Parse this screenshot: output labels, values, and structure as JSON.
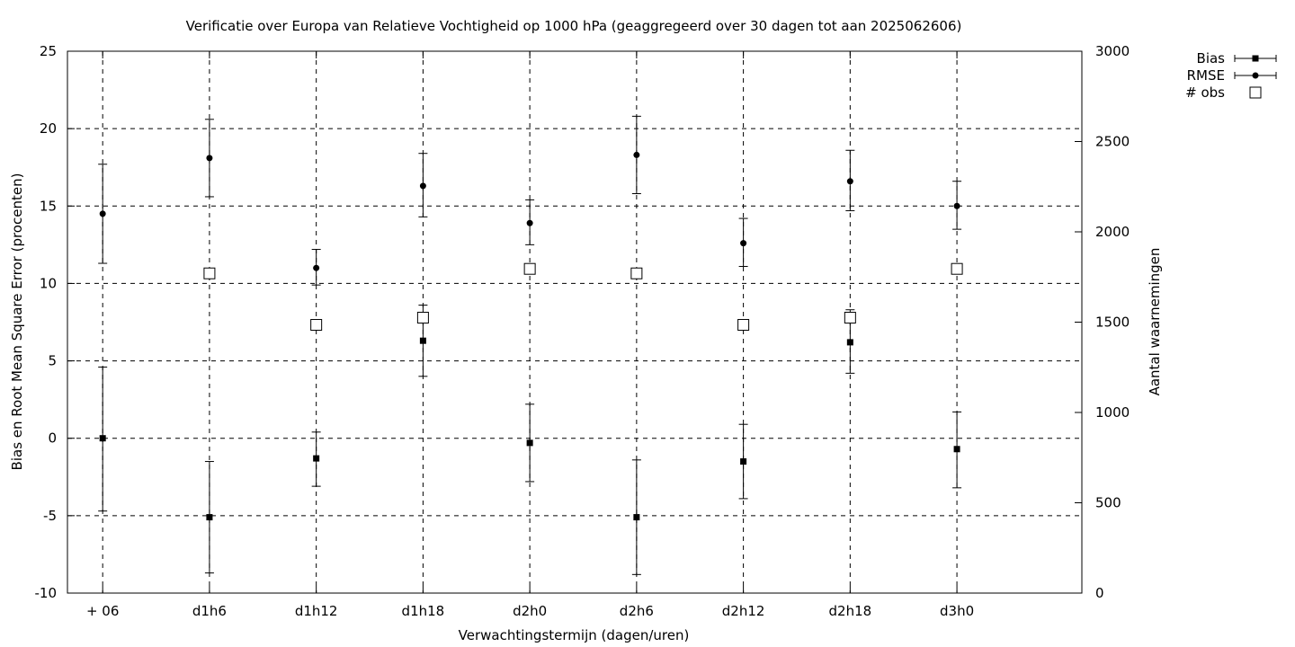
{
  "chart_data": {
    "type": "scatter",
    "title": "Verificatie over Europa van Relatieve Vochtigheid op 1000 hPa (geaggregeerd over 30 dagen tot aan 2025062606)",
    "xlabel": "Verwachtingstermijn (dagen/uren)",
    "ylabel": "Bias en Root Mean Square Error (procenten)",
    "y2label": "Aantal waarnemingen",
    "categories": [
      "+ 06",
      "d1h6",
      "d1h12",
      "d1h18",
      "d2h0",
      "d2h6",
      "d2h12",
      "d2h18",
      "d3h0"
    ],
    "ylim": [
      -10,
      25
    ],
    "yticks": [
      -10,
      -5,
      0,
      5,
      10,
      15,
      20,
      25
    ],
    "y2lim": [
      0,
      3000
    ],
    "y2ticks": [
      0,
      500,
      1000,
      1500,
      2000,
      2500,
      3000
    ],
    "grid": true,
    "legend_position": "outside top-right",
    "series": [
      {
        "name": "Bias",
        "axis": "left",
        "marker": "square",
        "values": [
          0.0,
          -5.1,
          -1.3,
          6.3,
          -0.3,
          -5.1,
          -1.5,
          6.2,
          -0.7
        ],
        "err_low": [
          -4.7,
          -8.7,
          -3.1,
          4.0,
          -2.8,
          -8.8,
          -3.9,
          4.2,
          -3.2
        ],
        "err_high": [
          4.6,
          -1.5,
          0.4,
          8.6,
          2.2,
          -1.4,
          0.9,
          8.3,
          1.7
        ]
      },
      {
        "name": "RMSE",
        "axis": "left",
        "marker": "circle",
        "values": [
          14.5,
          18.1,
          11.0,
          16.3,
          13.9,
          18.3,
          12.6,
          16.6,
          15.0
        ],
        "err_low": [
          11.3,
          15.6,
          9.9,
          14.3,
          12.5,
          15.8,
          11.1,
          14.7,
          13.5
        ],
        "err_high": [
          17.7,
          20.6,
          12.2,
          18.4,
          15.4,
          20.8,
          14.2,
          18.6,
          16.6
        ]
      },
      {
        "name": "# obs",
        "axis": "right",
        "marker": "open-square",
        "values": [
          null,
          1770,
          1485,
          1525,
          1795,
          1770,
          1485,
          1525,
          1795
        ]
      }
    ]
  }
}
